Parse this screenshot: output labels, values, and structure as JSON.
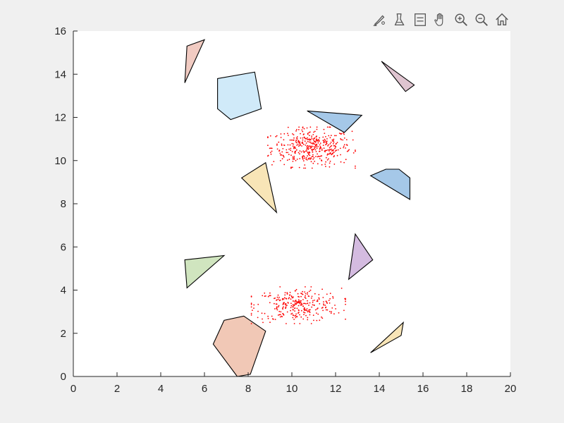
{
  "toolbar": {
    "icons": [
      "brush-edit-icon",
      "data-tips-icon",
      "legend-icon",
      "pan-hand-icon",
      "zoom-in-icon",
      "zoom-out-icon",
      "home-icon"
    ]
  },
  "chart_data": {
    "type": "scatter",
    "title": "",
    "xlabel": "",
    "ylabel": "",
    "xlim": [
      0,
      20
    ],
    "ylim": [
      0,
      16
    ],
    "xticks": [
      0,
      2,
      4,
      6,
      8,
      10,
      12,
      14,
      16,
      18,
      20
    ],
    "yticks": [
      0,
      2,
      4,
      6,
      8,
      10,
      12,
      14,
      16
    ],
    "grid": false,
    "point_clusters": [
      {
        "color": "#ff0000",
        "center": [
          10.9,
          10.6
        ],
        "spread": [
          2.0,
          0.95
        ],
        "count": 420
      },
      {
        "color": "#ff0000",
        "center": [
          10.3,
          3.3
        ],
        "spread": [
          2.15,
          0.85
        ],
        "count": 300
      }
    ],
    "polygons": [
      {
        "fill": "#e6a08f",
        "vertices": [
          [
            5.2,
            15.3
          ],
          [
            6.0,
            15.6
          ],
          [
            5.1,
            13.6
          ]
        ]
      },
      {
        "fill": "#a9d9f4",
        "vertices": [
          [
            6.6,
            13.8
          ],
          [
            8.3,
            14.1
          ],
          [
            8.6,
            12.4
          ],
          [
            7.2,
            11.9
          ],
          [
            6.6,
            12.4
          ]
        ]
      },
      {
        "fill": "#c493a9",
        "vertices": [
          [
            14.1,
            14.6
          ],
          [
            15.6,
            13.5
          ],
          [
            15.2,
            13.2
          ]
        ]
      },
      {
        "fill": "#5b9bd5",
        "vertices": [
          [
            10.7,
            12.3
          ],
          [
            13.2,
            12.1
          ],
          [
            12.4,
            11.3
          ]
        ]
      },
      {
        "fill": "#5b9bd5",
        "vertices": [
          [
            13.6,
            9.3
          ],
          [
            14.3,
            9.6
          ],
          [
            14.9,
            9.6
          ],
          [
            15.4,
            9.2
          ],
          [
            15.4,
            8.2
          ]
        ]
      },
      {
        "fill": "#f2cf7c",
        "vertices": [
          [
            7.7,
            9.2
          ],
          [
            8.8,
            9.9
          ],
          [
            9.3,
            7.6
          ]
        ]
      },
      {
        "fill": "#b084c7",
        "vertices": [
          [
            12.9,
            6.6
          ],
          [
            13.7,
            5.4
          ],
          [
            12.6,
            4.5
          ]
        ]
      },
      {
        "fill": "#a9cf8a",
        "vertices": [
          [
            5.1,
            5.4
          ],
          [
            6.9,
            5.6
          ],
          [
            5.2,
            4.1
          ]
        ]
      },
      {
        "fill": "#e69a7a",
        "vertices": [
          [
            6.4,
            1.5
          ],
          [
            6.9,
            2.6
          ],
          [
            7.8,
            2.8
          ],
          [
            8.8,
            2.1
          ],
          [
            8.1,
            0.1
          ],
          [
            7.5,
            0.0
          ]
        ]
      },
      {
        "fill": "#f2cf7c",
        "vertices": [
          [
            13.6,
            1.1
          ],
          [
            15.1,
            2.5
          ],
          [
            15.0,
            1.9
          ]
        ]
      }
    ]
  }
}
